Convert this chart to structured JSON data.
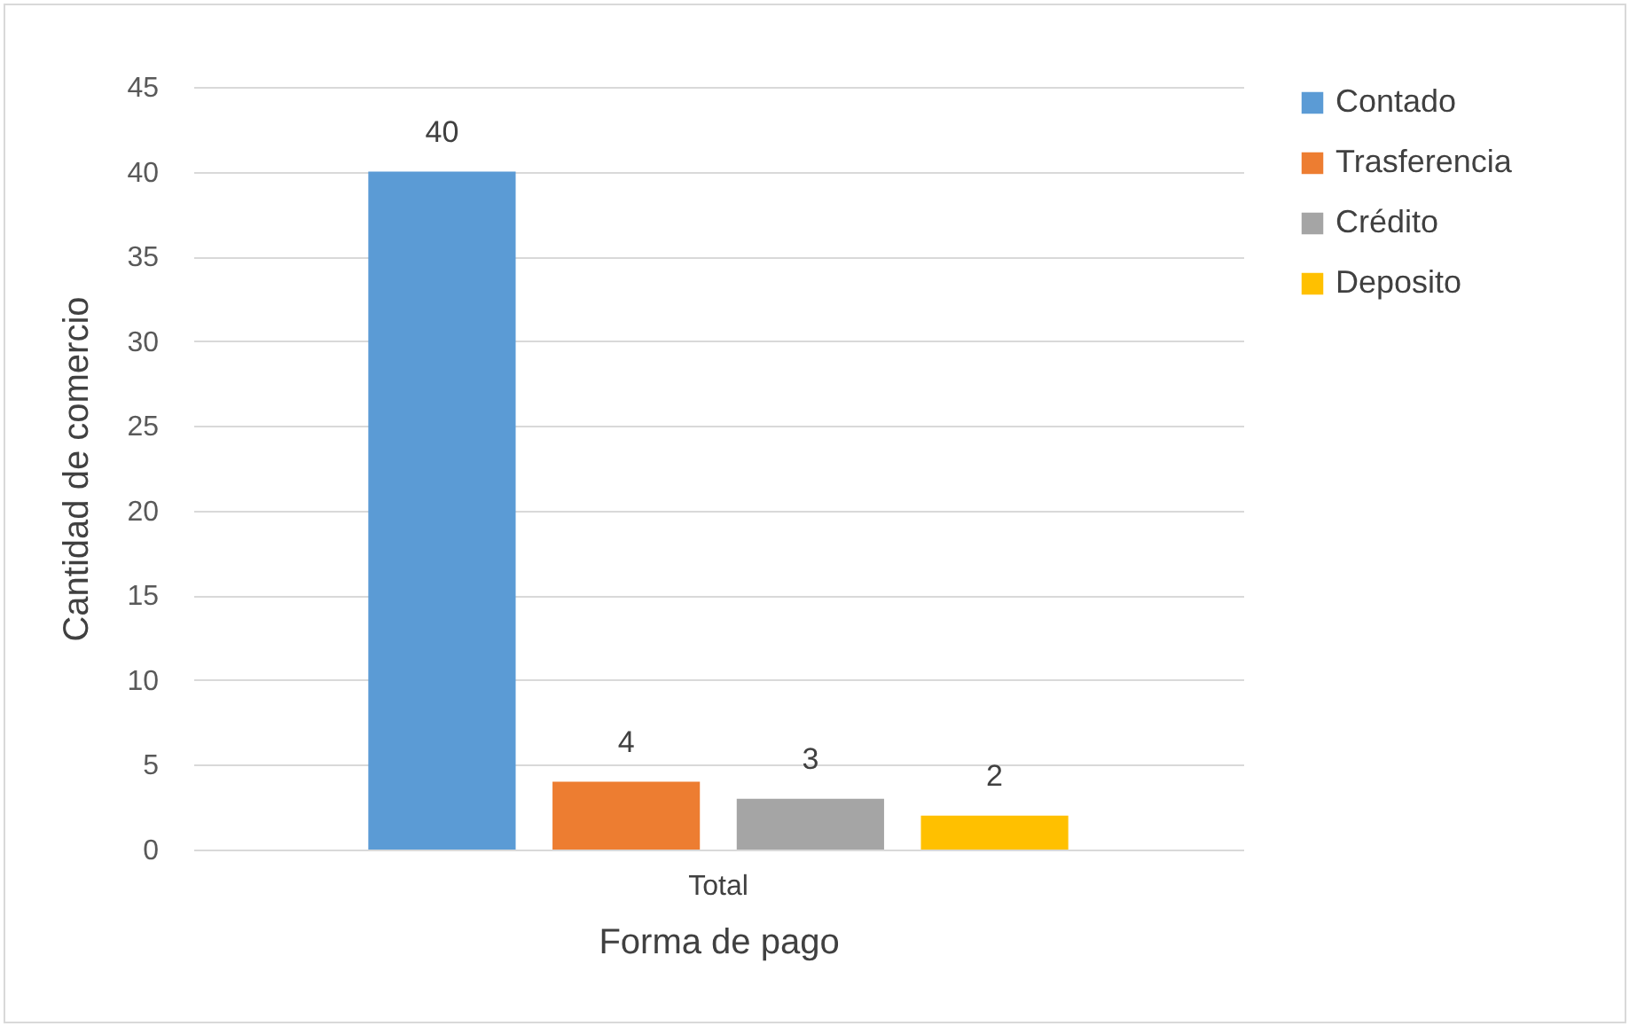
{
  "chart_data": {
    "type": "bar",
    "xlabel": "Forma de pago",
    "ylabel": "Cantidad de comercio",
    "categories": [
      "Total"
    ],
    "series": [
      {
        "name": "Contado",
        "color": "#5b9bd5",
        "values": [
          40
        ]
      },
      {
        "name": "Trasferencia",
        "color": "#ed7d31",
        "values": [
          4
        ]
      },
      {
        "name": "Crédito",
        "color": "#a5a5a5",
        "values": [
          3
        ]
      },
      {
        "name": "Deposito",
        "color": "#ffc000",
        "values": [
          2
        ]
      }
    ],
    "ylim": [
      0,
      45
    ],
    "yticks": [
      0,
      5,
      10,
      15,
      20,
      25,
      30,
      35,
      40,
      45
    ],
    "grid": "y",
    "legend": "right",
    "data_labels": true
  }
}
